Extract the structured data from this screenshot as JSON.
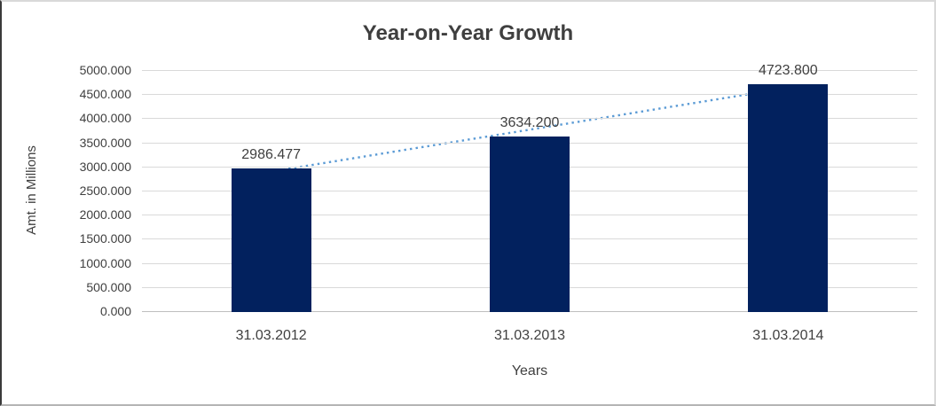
{
  "chart_data": {
    "type": "bar",
    "title": "Year-on-Year Growth",
    "xlabel": "Years",
    "ylabel": "Amt. in Millions",
    "categories": [
      "31.03.2012",
      "31.03.2013",
      "31.03.2014"
    ],
    "values": [
      2986.477,
      3634.2,
      4723.8
    ],
    "data_labels": [
      "2986.477",
      "3634.200",
      "4723.800"
    ],
    "ylim": [
      0,
      5000
    ],
    "ytick_step": 500,
    "ytick_labels": [
      "0.000",
      "500.000",
      "1000.000",
      "1500.000",
      "2000.000",
      "2500.000",
      "3000.000",
      "3500.000",
      "4000.000",
      "4500.000",
      "5000.000"
    ],
    "grid": true,
    "legend": "none",
    "trendline": {
      "type": "linear",
      "style": "dotted",
      "span": "first-to-last-category"
    },
    "colors": {
      "bar": "#02215e",
      "trendline": "#5b9bd5",
      "gridline": "#d9d9d9",
      "axis_line": "#bfbfbf",
      "text": "#404040",
      "title_text": "#3f3f3f"
    }
  }
}
